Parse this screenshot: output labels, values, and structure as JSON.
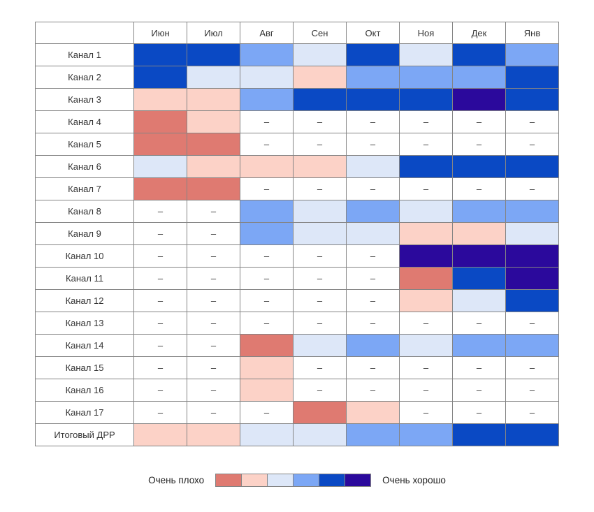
{
  "chart_data": {
    "type": "heatmap",
    "title": "",
    "columns": [
      "Июн",
      "Июл",
      "Авг",
      "Сен",
      "Окт",
      "Ноя",
      "Дек",
      "Янв"
    ],
    "rows": [
      "Канал 1",
      "Канал 2",
      "Канал 3",
      "Канал 4",
      "Канал 5",
      "Канал 6",
      "Канал 7",
      "Канал 8",
      "Канал 9",
      "Канал 10",
      "Канал 11",
      "Канал 12",
      "Канал 13",
      "Канал 14",
      "Канал 15",
      "Канал 16",
      "Канал 17",
      "Итоговый ДРР"
    ],
    "values": [
      [
        5,
        5,
        4,
        3,
        5,
        3,
        5,
        4
      ],
      [
        5,
        3,
        3,
        2,
        4,
        4,
        4,
        5
      ],
      [
        2,
        2,
        4,
        5,
        5,
        5,
        6,
        5
      ],
      [
        1,
        2,
        null,
        null,
        null,
        null,
        null,
        null
      ],
      [
        1,
        1,
        null,
        null,
        null,
        null,
        null,
        null
      ],
      [
        3,
        2,
        2,
        2,
        3,
        5,
        5,
        5
      ],
      [
        1,
        1,
        null,
        null,
        null,
        null,
        null,
        null
      ],
      [
        null,
        null,
        4,
        3,
        4,
        3,
        4,
        4
      ],
      [
        null,
        null,
        4,
        3,
        3,
        2,
        2,
        3
      ],
      [
        null,
        null,
        null,
        null,
        null,
        6,
        6,
        6
      ],
      [
        null,
        null,
        null,
        null,
        null,
        1,
        5,
        6
      ],
      [
        null,
        null,
        null,
        null,
        null,
        2,
        3,
        5
      ],
      [
        null,
        null,
        null,
        null,
        null,
        null,
        null,
        null
      ],
      [
        null,
        null,
        1,
        3,
        4,
        3,
        4,
        4
      ],
      [
        null,
        null,
        2,
        null,
        null,
        null,
        null,
        null
      ],
      [
        null,
        null,
        2,
        null,
        null,
        null,
        null,
        null
      ],
      [
        null,
        null,
        null,
        1,
        2,
        null,
        null,
        null
      ],
      [
        2,
        2,
        3,
        3,
        4,
        4,
        5,
        5
      ]
    ],
    "missing_marker": "–",
    "scale_levels": 6,
    "palette": [
      "#DF7A71",
      "#FCD2C7",
      "#DDE7F8",
      "#7CA7F5",
      "#0A49C4",
      "#2B099C"
    ],
    "legend": {
      "min_label": "Очень плохо",
      "max_label": "Очень хорошо",
      "position": "bottom-center"
    }
  },
  "colors": {
    "grid_border": "#848484",
    "text": "#333333",
    "background": "#FFFFFF"
  }
}
